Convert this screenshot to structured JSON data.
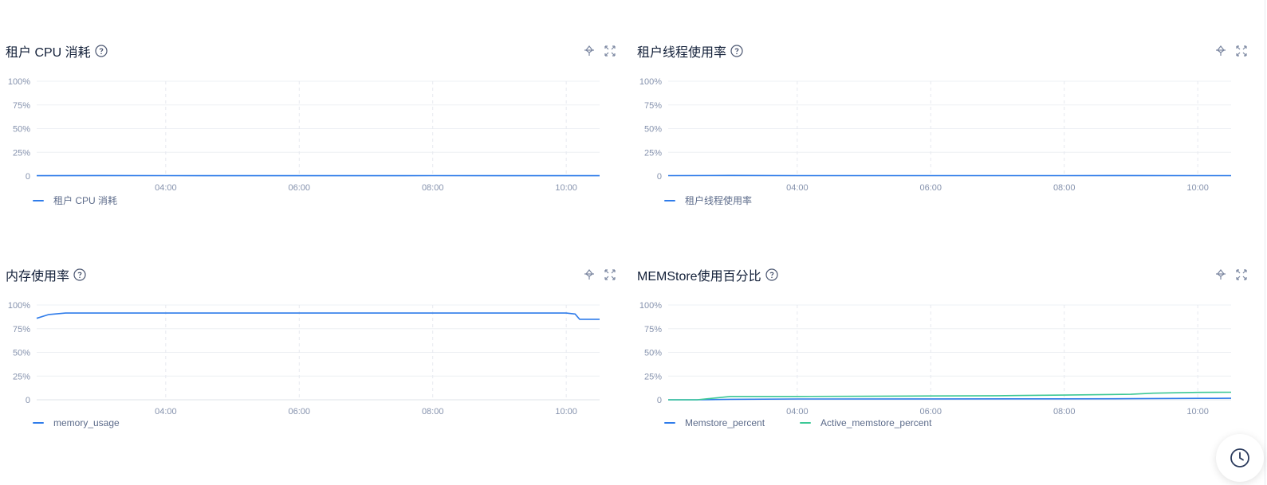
{
  "colors": {
    "line_primary": "#2f7cea",
    "line_secondary": "#3cc896"
  },
  "toolbar": {
    "icons": [
      "pin-icon",
      "expand-icon"
    ]
  },
  "fab": {
    "icon": "clock-icon"
  },
  "chart_data": [
    {
      "title": "租户 CPU 消耗",
      "type": "line",
      "yticks": [
        "100%",
        "75%",
        "50%",
        "25%",
        "0"
      ],
      "ylim": [
        0,
        100
      ],
      "xticks": [
        "04:00",
        "06:00",
        "08:00",
        "10:00"
      ],
      "xlim": [
        "02:04",
        "10:30"
      ],
      "grid": true,
      "legend": "bottom-left",
      "series": [
        {
          "name": "租户 CPU 消耗",
          "color": "#2f7cea",
          "x": [
            "02:04",
            "03:00",
            "04:00",
            "05:00",
            "06:00",
            "07:00",
            "08:00",
            "09:00",
            "10:00",
            "10:30"
          ],
          "y": [
            0.3,
            0.5,
            0.4,
            0.3,
            0.3,
            0.3,
            0.4,
            0.3,
            0.3,
            0.3
          ]
        }
      ]
    },
    {
      "title": "租户线程使用率",
      "type": "line",
      "yticks": [
        "100%",
        "75%",
        "50%",
        "25%",
        "0"
      ],
      "ylim": [
        0,
        100
      ],
      "xticks": [
        "04:00",
        "06:00",
        "08:00",
        "10:00"
      ],
      "xlim": [
        "02:04",
        "10:30"
      ],
      "grid": true,
      "legend": "bottom-left",
      "series": [
        {
          "name": "租户线程使用率",
          "color": "#2f7cea",
          "x": [
            "02:04",
            "03:00",
            "04:00",
            "05:00",
            "06:00",
            "07:00",
            "08:00",
            "09:00",
            "10:00",
            "10:30"
          ],
          "y": [
            0.4,
            0.6,
            0.4,
            0.4,
            0.4,
            0.4,
            0.4,
            0.5,
            0.4,
            0.4
          ]
        }
      ]
    },
    {
      "title": "内存使用率",
      "type": "line",
      "yticks": [
        "100%",
        "75%",
        "50%",
        "25%",
        "0"
      ],
      "ylim": [
        0,
        100
      ],
      "xticks": [
        "04:00",
        "06:00",
        "08:00",
        "10:00"
      ],
      "xlim": [
        "02:04",
        "10:30"
      ],
      "grid": true,
      "legend": "bottom-left",
      "series": [
        {
          "name": "memory_usage",
          "color": "#2f7cea",
          "x": [
            "02:04",
            "02:15",
            "02:30",
            "03:00",
            "04:00",
            "05:00",
            "06:00",
            "07:00",
            "08:00",
            "09:00",
            "10:00",
            "10:08",
            "10:12",
            "10:30"
          ],
          "y": [
            86,
            90,
            91.5,
            91.5,
            91.5,
            91.5,
            91.5,
            91.5,
            91.5,
            91.5,
            91.5,
            90.5,
            85,
            85
          ]
        }
      ]
    },
    {
      "title": "MEMStore使用百分比",
      "type": "line",
      "yticks": [
        "100%",
        "75%",
        "50%",
        "25%",
        "0"
      ],
      "ylim": [
        0,
        100
      ],
      "xticks": [
        "04:00",
        "06:00",
        "08:00",
        "10:00"
      ],
      "xlim": [
        "02:04",
        "10:30"
      ],
      "grid": true,
      "legend": "bottom-left",
      "series": [
        {
          "name": "Memstore_percent",
          "color": "#2f7cea",
          "x": [
            "02:04",
            "02:30",
            "03:00",
            "04:00",
            "06:00",
            "08:00",
            "09:00",
            "10:00",
            "10:30"
          ],
          "y": [
            0,
            0,
            0.5,
            0.8,
            0.9,
            1.0,
            1.2,
            1.5,
            1.6
          ]
        },
        {
          "name": "Active_memstore_percent",
          "color": "#3cc896",
          "x": [
            "02:04",
            "02:30",
            "03:00",
            "04:00",
            "05:00",
            "06:00",
            "07:00",
            "08:00",
            "09:00",
            "09:20",
            "10:00",
            "10:30"
          ],
          "y": [
            0,
            0,
            3.5,
            3.5,
            3.7,
            4.0,
            4.3,
            5.0,
            5.8,
            7.0,
            7.8,
            8.0
          ]
        }
      ]
    }
  ]
}
